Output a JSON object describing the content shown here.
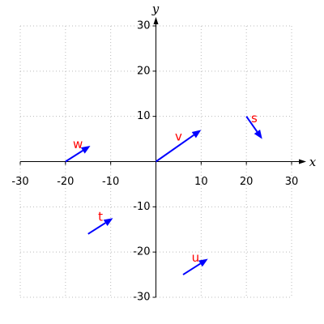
{
  "chart_data": {
    "type": "vector",
    "xlabel": "x",
    "ylabel": "y",
    "xlim": [
      -30,
      30
    ],
    "ylim": [
      -30,
      30
    ],
    "xticks": [
      -30,
      -20,
      -10,
      10,
      20,
      30
    ],
    "yticks": [
      -30,
      -20,
      -10,
      10,
      20,
      30
    ],
    "grid": true,
    "color": "#0000ff",
    "label_color": "#ff0000",
    "vectors": [
      {
        "name": "v",
        "x": 0,
        "y": 0,
        "dx": 10,
        "dy": 7
      },
      {
        "name": "s",
        "x": 20,
        "y": 10,
        "dx": 3.5,
        "dy": -5
      },
      {
        "name": "w",
        "x": -20,
        "y": 0,
        "dx": 5.5,
        "dy": 3.5
      },
      {
        "name": "t",
        "x": -15,
        "y": -16,
        "dx": 5.5,
        "dy": 3.5
      },
      {
        "name": "u",
        "x": 6,
        "y": -25,
        "dx": 5.5,
        "dy": 3.5
      }
    ]
  }
}
